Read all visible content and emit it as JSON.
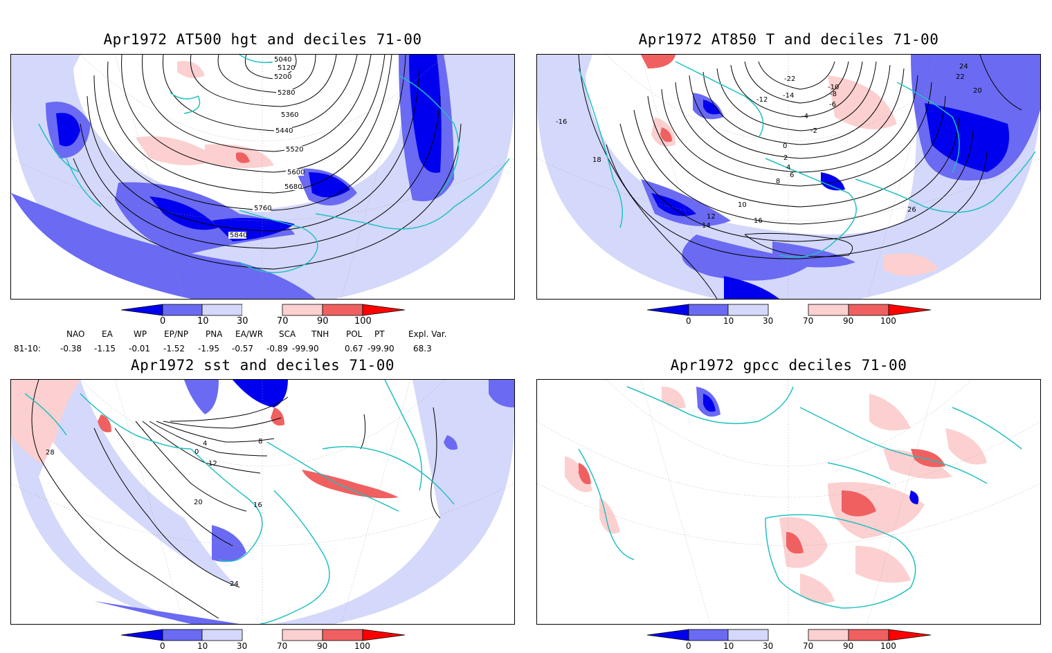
{
  "panels": [
    {
      "id": "p1",
      "title": "Apr1972 AT500 hgt and deciles 71-00",
      "contours": [
        "5040",
        "5120",
        "5200",
        "5280",
        "5360",
        "5440",
        "5520",
        "5600",
        "5680",
        "5760",
        "5840"
      ]
    },
    {
      "id": "p2",
      "title": "Apr1972 AT850 T and deciles 71-00",
      "contours": [
        "-22",
        "-16",
        "-14",
        "-12",
        "-10",
        "-8",
        "-6",
        "-4",
        "-2",
        "0",
        "2",
        "4",
        "6",
        "8",
        "10",
        "12",
        "14",
        "16",
        "18",
        "20",
        "22",
        "24",
        "26"
      ]
    },
    {
      "id": "p3",
      "title": "Apr1972 sst and deciles 71-00",
      "contours": [
        "0",
        "4",
        "8",
        "12",
        "16",
        "20",
        "24",
        "28"
      ]
    },
    {
      "id": "p4",
      "title": "Apr1972 gpcc deciles 71-00",
      "contours": []
    }
  ],
  "colorbar": {
    "ticks": [
      "0",
      "10",
      "30",
      "70",
      "90",
      "100"
    ],
    "colors": [
      "#0000ee",
      "#6a6af2",
      "#d4d8fa",
      "#ffffff",
      "#fcd0d0",
      "#f06060",
      "#ff0000"
    ]
  },
  "indices": {
    "headers": [
      "NAO",
      "EA",
      "WP",
      "EP/NP",
      "PNA",
      "EA/WR",
      "SCA",
      "TNH",
      "POL",
      "PT",
      "Expl. Var."
    ],
    "row_label": "81-10:",
    "values": [
      "-0.38",
      "-1.15",
      "-0.01",
      "-1.52",
      "-1.95",
      "-0.57",
      "-0.89",
      "-99.90",
      "0.67",
      "-99.90",
      "68.3"
    ]
  },
  "colors": {
    "coast": "#20c0c0",
    "contour": "#000000"
  }
}
